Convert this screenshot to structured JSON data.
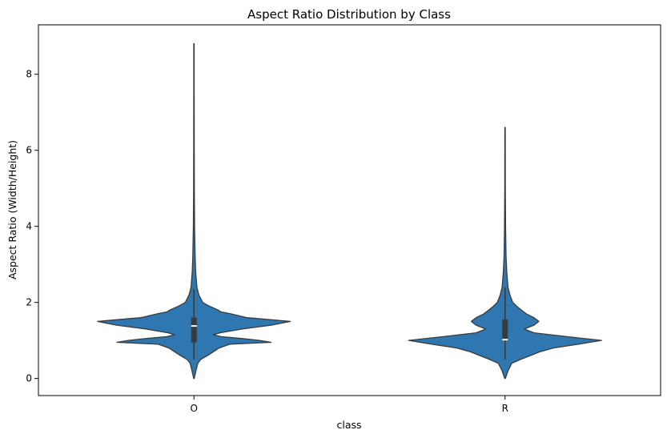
{
  "chart_data": {
    "type": "violin",
    "title": "Aspect Ratio Distribution by Class",
    "xlabel": "class",
    "ylabel": "Aspect Ratio (Width/Height)",
    "categories": [
      "O",
      "R"
    ],
    "ylim": [
      -0.45,
      9.3
    ],
    "yticks": [
      0,
      2,
      4,
      6,
      8
    ],
    "grid": false,
    "colors": {
      "fill": "#2f77b0",
      "edge": "#3a3a3a",
      "box": "#3a3a3a",
      "median": "#ffffff"
    },
    "violins": [
      {
        "category": "O",
        "min": 0.0,
        "max": 8.8,
        "q1": 0.95,
        "median": 1.38,
        "q3": 1.6,
        "whisker_low": 0.5,
        "whisker_high": 2.35,
        "density": [
          [
            0.0,
            0.003
          ],
          [
            0.2,
            0.02
          ],
          [
            0.4,
            0.04
          ],
          [
            0.5,
            0.07
          ],
          [
            0.6,
            0.14
          ],
          [
            0.7,
            0.2
          ],
          [
            0.8,
            0.26
          ],
          [
            0.9,
            0.37
          ],
          [
            0.95,
            0.8
          ],
          [
            1.0,
            0.68
          ],
          [
            1.05,
            0.5
          ],
          [
            1.1,
            0.28
          ],
          [
            1.15,
            0.2
          ],
          [
            1.2,
            0.27
          ],
          [
            1.3,
            0.5
          ],
          [
            1.4,
            0.8
          ],
          [
            1.5,
            1.0
          ],
          [
            1.6,
            0.55
          ],
          [
            1.7,
            0.38
          ],
          [
            1.75,
            0.28
          ],
          [
            1.8,
            0.25
          ],
          [
            1.9,
            0.16
          ],
          [
            2.0,
            0.09
          ],
          [
            2.2,
            0.05
          ],
          [
            2.4,
            0.03
          ],
          [
            2.8,
            0.018
          ],
          [
            3.2,
            0.012
          ],
          [
            4.0,
            0.006
          ],
          [
            5.0,
            0.004
          ],
          [
            6.0,
            0.003
          ],
          [
            7.5,
            0.002
          ],
          [
            8.8,
            0.002
          ]
        ]
      },
      {
        "category": "R",
        "min": 0.0,
        "max": 6.6,
        "q1": 1.0,
        "median": 1.02,
        "q3": 1.55,
        "whisker_low": 0.5,
        "whisker_high": 2.4,
        "density": [
          [
            0.0,
            0.003
          ],
          [
            0.2,
            0.03
          ],
          [
            0.4,
            0.07
          ],
          [
            0.5,
            0.16
          ],
          [
            0.6,
            0.26
          ],
          [
            0.7,
            0.36
          ],
          [
            0.8,
            0.5
          ],
          [
            0.9,
            0.76
          ],
          [
            1.0,
            1.0
          ],
          [
            1.1,
            0.64
          ],
          [
            1.2,
            0.3
          ],
          [
            1.3,
            0.2
          ],
          [
            1.4,
            0.3
          ],
          [
            1.5,
            0.35
          ],
          [
            1.6,
            0.3
          ],
          [
            1.7,
            0.22
          ],
          [
            1.8,
            0.17
          ],
          [
            1.9,
            0.12
          ],
          [
            2.0,
            0.08
          ],
          [
            2.2,
            0.05
          ],
          [
            2.4,
            0.03
          ],
          [
            2.8,
            0.018
          ],
          [
            3.2,
            0.01
          ],
          [
            4.0,
            0.005
          ],
          [
            5.0,
            0.003
          ],
          [
            6.6,
            0.002
          ]
        ]
      }
    ]
  }
}
